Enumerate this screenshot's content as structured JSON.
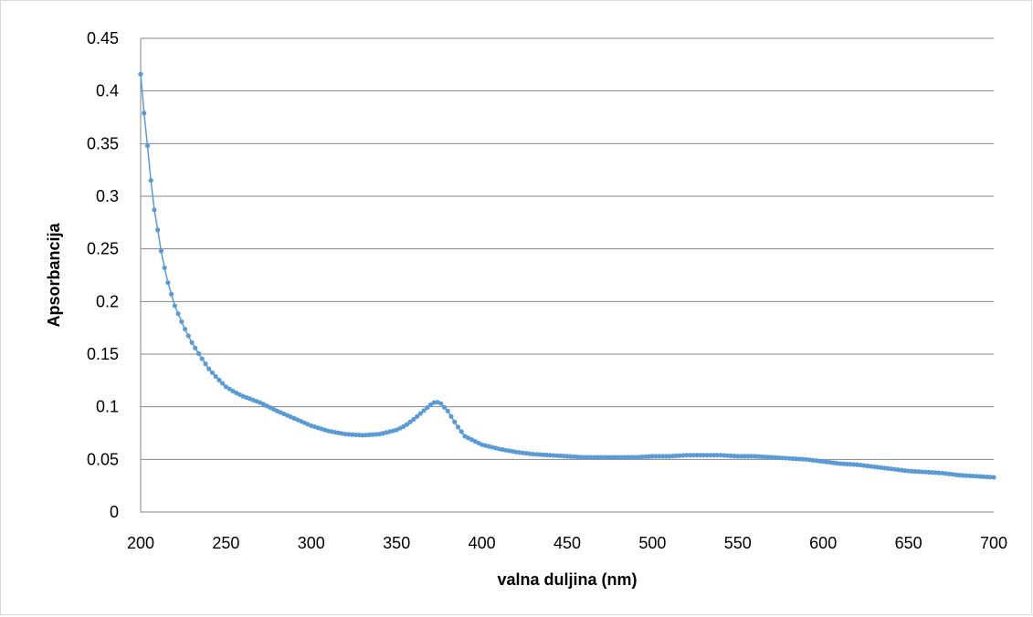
{
  "chart_data": {
    "type": "line",
    "title": "",
    "xlabel": "valna duljina (nm)",
    "ylabel": "Apsorbancija",
    "xlim": [
      200,
      700
    ],
    "ylim": [
      0,
      0.45
    ],
    "x_ticks": [
      200,
      250,
      300,
      350,
      400,
      450,
      500,
      550,
      600,
      650,
      700
    ],
    "x_tick_labels": [
      "200",
      "250",
      "300",
      "350",
      "400",
      "450",
      "500",
      "550",
      "600",
      "650",
      "700"
    ],
    "y_ticks": [
      0,
      0.05,
      0.1,
      0.15,
      0.2,
      0.25,
      0.3,
      0.35,
      0.4,
      0.45
    ],
    "y_tick_labels": [
      "0",
      "0.05",
      "0.1",
      "0.15",
      "0.2",
      "0.25",
      "0.3",
      "0.35",
      "0.4",
      "0.45"
    ],
    "grid": "horizontal",
    "legend": "none",
    "series": [
      {
        "color": "#5b9bd5",
        "marker": "circle",
        "x": [
          200,
          202,
          204,
          206,
          208,
          210,
          212,
          214,
          216,
          218,
          220,
          225,
          230,
          235,
          240,
          245,
          250,
          255,
          260,
          270,
          280,
          290,
          300,
          310,
          320,
          330,
          340,
          350,
          355,
          360,
          365,
          370,
          373,
          376,
          380,
          385,
          390,
          400,
          410,
          420,
          430,
          440,
          450,
          460,
          470,
          480,
          490,
          500,
          510,
          520,
          530,
          540,
          550,
          560,
          570,
          580,
          590,
          600,
          610,
          620,
          630,
          640,
          650,
          660,
          670,
          680,
          690,
          700
        ],
        "y": [
          0.416,
          0.379,
          0.348,
          0.315,
          0.287,
          0.268,
          0.248,
          0.232,
          0.218,
          0.207,
          0.196,
          0.177,
          0.161,
          0.148,
          0.136,
          0.127,
          0.119,
          0.114,
          0.11,
          0.104,
          0.096,
          0.089,
          0.082,
          0.077,
          0.074,
          0.073,
          0.074,
          0.078,
          0.082,
          0.088,
          0.095,
          0.102,
          0.105,
          0.103,
          0.096,
          0.083,
          0.072,
          0.064,
          0.06,
          0.057,
          0.055,
          0.054,
          0.053,
          0.052,
          0.052,
          0.052,
          0.052,
          0.053,
          0.053,
          0.054,
          0.054,
          0.054,
          0.053,
          0.053,
          0.052,
          0.051,
          0.05,
          0.048,
          0.046,
          0.045,
          0.043,
          0.041,
          0.039,
          0.038,
          0.037,
          0.035,
          0.034,
          0.033
        ]
      }
    ]
  }
}
